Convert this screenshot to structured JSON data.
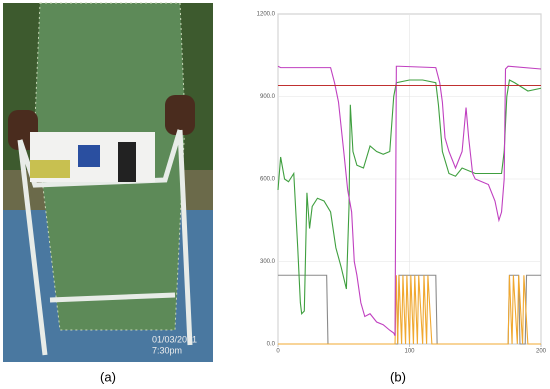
{
  "photo": {
    "date": "01/03/2021",
    "time": "7:30pm"
  },
  "panels": [
    "(a)",
    "(b)"
  ],
  "chart_data": {
    "type": "line",
    "xlim": [
      0,
      200
    ],
    "xticks": [
      0,
      100,
      200
    ],
    "ylim": [
      0,
      1200
    ],
    "yticks": [
      {
        "value": 0,
        "label": "0.0"
      },
      {
        "value": 300,
        "label": "300.0"
      },
      {
        "value": 600,
        "label": "600.0"
      },
      {
        "value": 900,
        "label": "900.0"
      },
      {
        "value": 1200,
        "label": "1200.0"
      }
    ],
    "grid": true,
    "series": [
      {
        "color": "#8a8a8a",
        "x": [
          0,
          37,
          38,
          91,
          92,
          120,
          121,
          175,
          176,
          183,
          184,
          188,
          189,
          200
        ],
        "values": [
          250,
          250,
          0,
          0,
          250,
          250,
          0,
          0,
          250,
          250,
          0,
          0,
          250,
          250
        ]
      },
      {
        "color": "#f0a830",
        "x": [
          0,
          89,
          90,
          91,
          92,
          94,
          95,
          97,
          98,
          100,
          101,
          103,
          104,
          106,
          107,
          110,
          111,
          113,
          114,
          117,
          118,
          175,
          176,
          178,
          179,
          182,
          183,
          186,
          187,
          190,
          191,
          200
        ],
        "values": [
          0,
          0,
          250,
          0,
          250,
          0,
          250,
          0,
          250,
          0,
          250,
          0,
          250,
          0,
          250,
          0,
          250,
          0,
          250,
          0,
          0,
          0,
          250,
          0,
          250,
          0,
          250,
          0,
          250,
          0,
          0,
          0
        ]
      },
      {
        "color": "#3f9f3f",
        "x": [
          0,
          2,
          5,
          8,
          12,
          15,
          17,
          18,
          20,
          22,
          24,
          26,
          30,
          35,
          40,
          44,
          48,
          52,
          54,
          55,
          57,
          60,
          65,
          70,
          75,
          80,
          85,
          88,
          90,
          100,
          110,
          120,
          122,
          125,
          130,
          135,
          140,
          150,
          160,
          170,
          172,
          174,
          176,
          180,
          190,
          200
        ],
        "values": [
          560,
          680,
          600,
          590,
          620,
          350,
          150,
          110,
          120,
          550,
          420,
          500,
          530,
          520,
          480,
          350,
          280,
          200,
          500,
          870,
          700,
          650,
          640,
          720,
          700,
          690,
          700,
          900,
          950,
          960,
          960,
          950,
          870,
          700,
          620,
          610,
          640,
          620,
          620,
          620,
          700,
          900,
          960,
          950,
          920,
          930
        ]
      },
      {
        "color": "#c040c0",
        "x": [
          0,
          2,
          40,
          43,
          46,
          50,
          53,
          56,
          58,
          60,
          63,
          66,
          70,
          75,
          80,
          85,
          88,
          89,
          90,
          92,
          120,
          123,
          125,
          127,
          130,
          135,
          140,
          143,
          145,
          148,
          150,
          155,
          160,
          165,
          168,
          170,
          172,
          173,
          175,
          200
        ],
        "values": [
          1010,
          1005,
          1005,
          950,
          880,
          700,
          560,
          480,
          300,
          250,
          150,
          100,
          110,
          80,
          70,
          50,
          40,
          30,
          1010,
          1010,
          1005,
          950,
          880,
          750,
          700,
          640,
          700,
          860,
          750,
          620,
          600,
          590,
          580,
          520,
          450,
          480,
          600,
          1000,
          1010,
          1000
        ]
      },
      {
        "color": "#c03030",
        "x": [
          0,
          200
        ],
        "values": [
          940,
          940
        ]
      }
    ]
  }
}
